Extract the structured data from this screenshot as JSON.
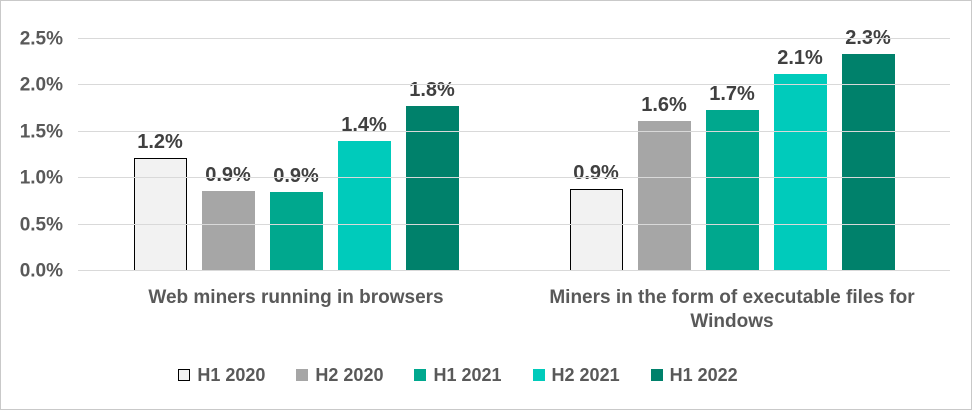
{
  "chart_data": {
    "type": "bar",
    "title": "",
    "xlabel": "",
    "ylabel": "",
    "ylim": [
      0,
      2.5
    ],
    "grid": "horizontal",
    "legend_position": "bottom",
    "categories": [
      "Web miners running in browsers",
      "Miners in the form of executable files for Windows"
    ],
    "y_ticks": [
      {
        "label": "0.0%",
        "value": 0
      },
      {
        "label": "0.5%",
        "value": 0.5
      },
      {
        "label": "1.0%",
        "value": 1.0
      },
      {
        "label": "1.5%",
        "value": 1.5
      },
      {
        "label": "2.0%",
        "value": 2.0
      },
      {
        "label": "2.5%",
        "value": 2.5
      }
    ],
    "series": [
      {
        "name": "H1 2020",
        "color": "#f2f2f2",
        "border_color": "#000000",
        "values": [
          1.22,
          0.88
        ],
        "labels": [
          "1.2%",
          "0.9%"
        ]
      },
      {
        "name": "H2 2020",
        "color": "#a6a6a6",
        "values": [
          0.86,
          1.62
        ],
        "labels": [
          "0.9%",
          "1.6%"
        ]
      },
      {
        "name": "H1 2021",
        "color": "#00a88e",
        "values": [
          0.85,
          1.74
        ],
        "labels": [
          "0.9%",
          "1.7%"
        ]
      },
      {
        "name": "H2 2021",
        "color": "#00cbbb",
        "values": [
          1.4,
          2.12
        ],
        "labels": [
          "1.4%",
          "2.1%"
        ]
      },
      {
        "name": "H1 2022",
        "color": "#00816b",
        "values": [
          1.78,
          2.34
        ],
        "labels": [
          "1.8%",
          "2.3%"
        ]
      }
    ],
    "colors": {
      "gridline": "#d9d9d9",
      "axis_text": "#595959",
      "data_label_text": "#404040",
      "frame_border": "#c9c9c9"
    }
  }
}
